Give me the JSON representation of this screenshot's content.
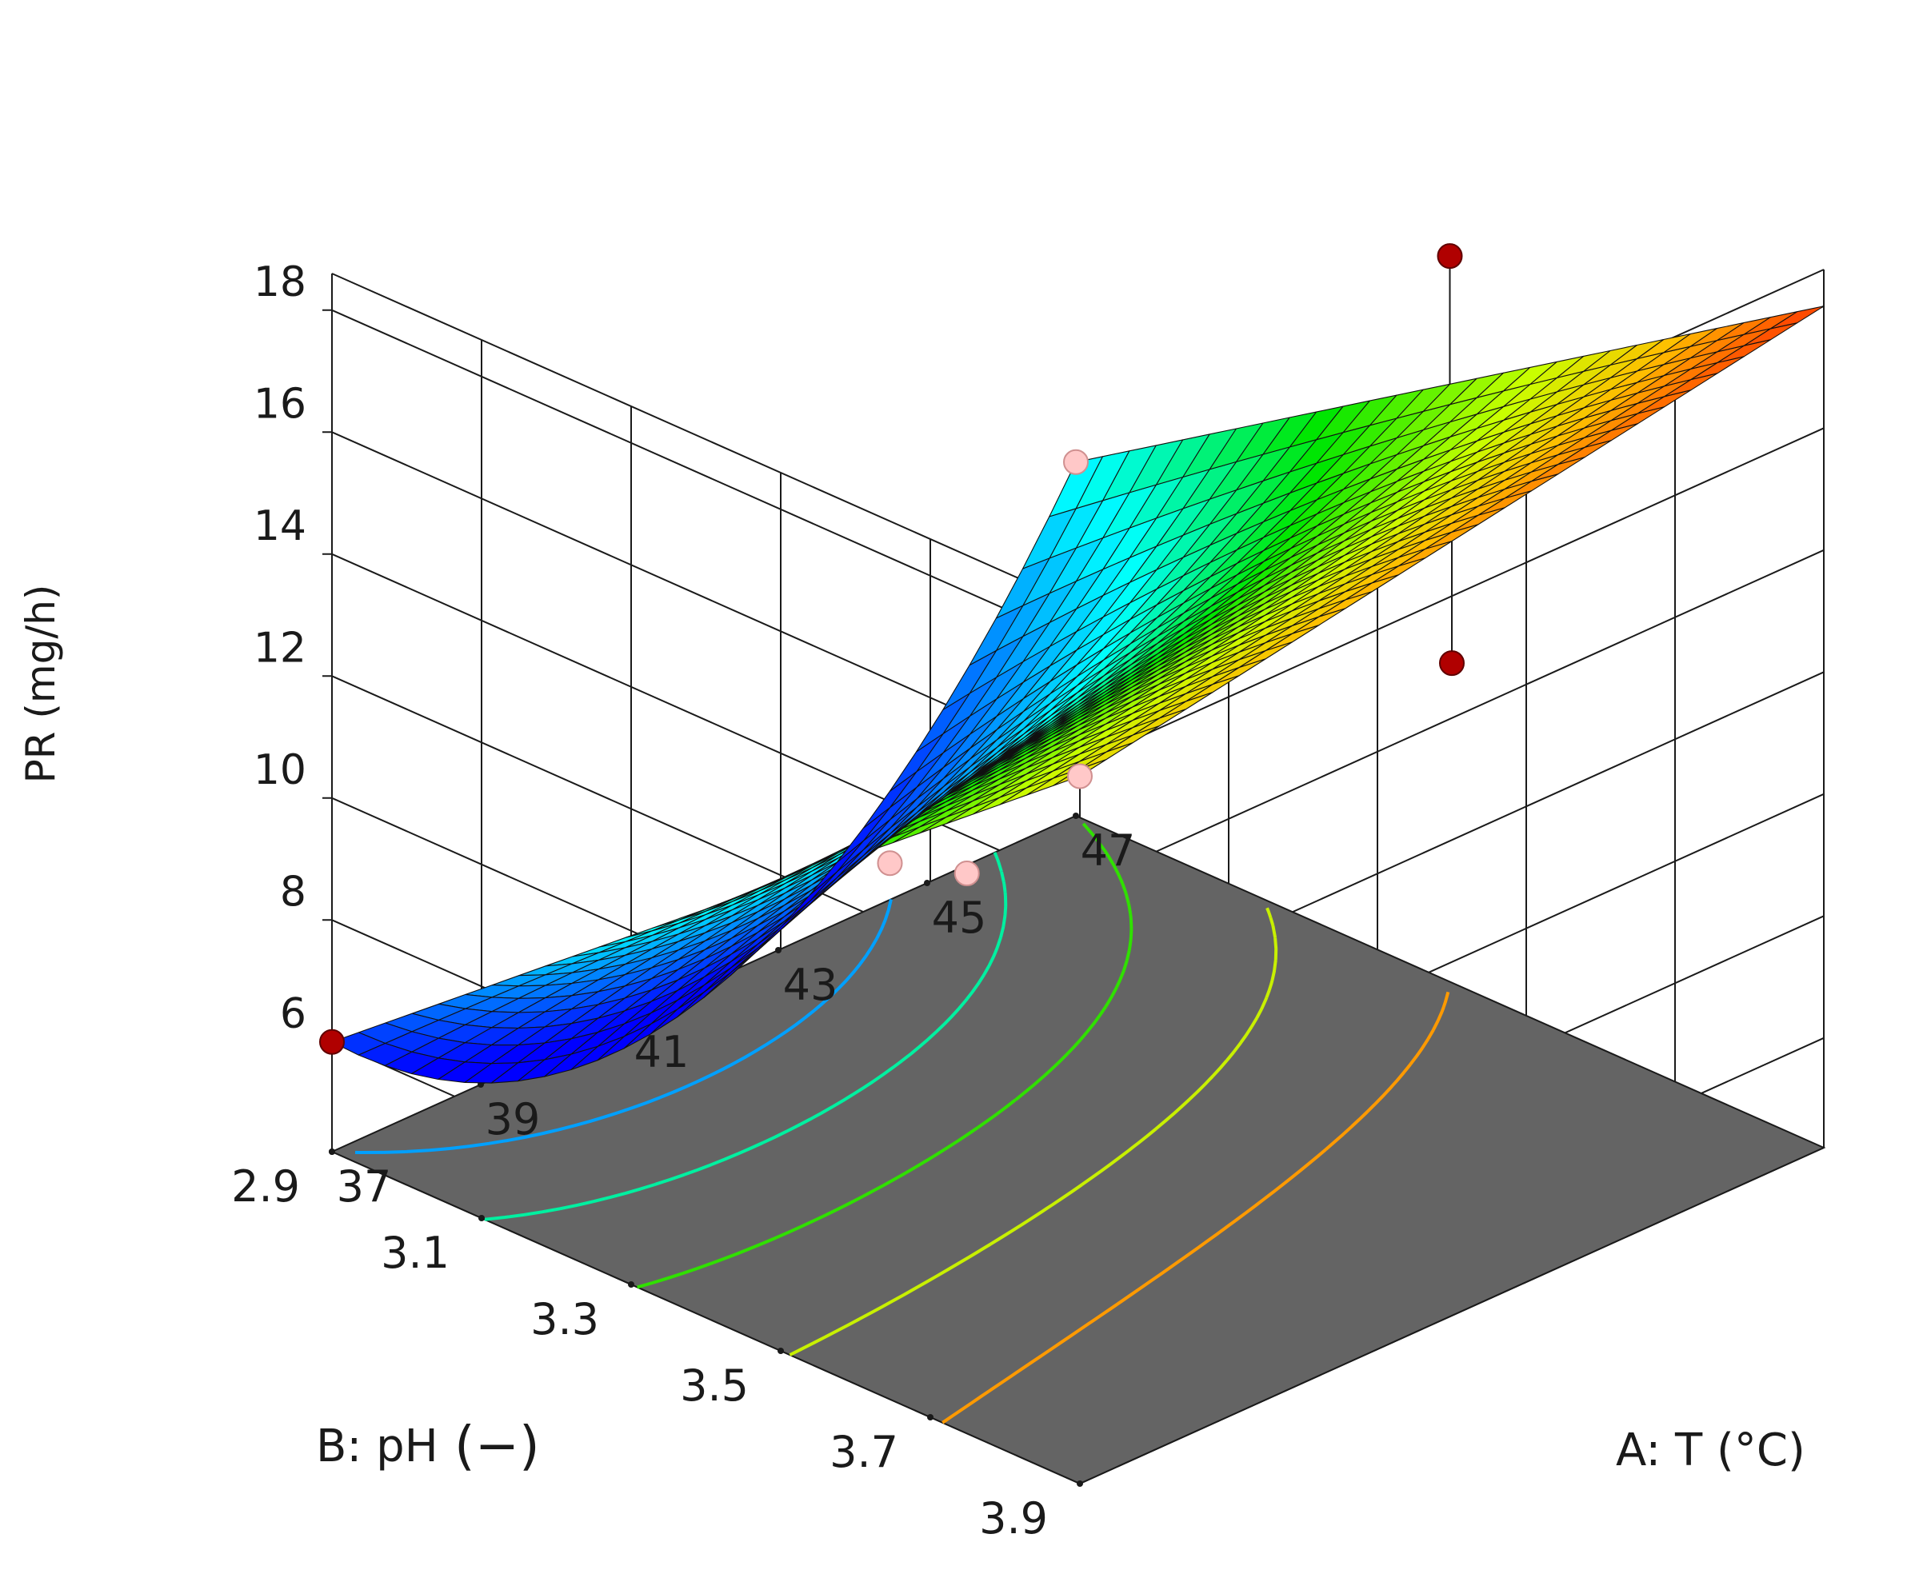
{
  "chart_data": {
    "type": "surface",
    "zlabel": "PR (mg/h)",
    "xlabel": "A: T (°C)",
    "ylabel_text": "B: pH",
    "ylabel_unit": "(−)",
    "x_ticks": [
      "37",
      "39",
      "41",
      "43",
      "45",
      "47"
    ],
    "y_ticks": [
      "2.9",
      "3.1",
      "3.3",
      "3.5",
      "3.7",
      "3.9"
    ],
    "z_ticks": [
      "6",
      "8",
      "10",
      "12",
      "14",
      "16",
      "18"
    ],
    "xlim": [
      37,
      47
    ],
    "ylim": [
      2.9,
      3.9
    ],
    "zlim": [
      4.2,
      18.6
    ],
    "model": {
      "description": "quadratic response surface PR = f(T, pH)",
      "corners": [
        {
          "T": 37,
          "pH": 3.9,
          "PR": 15.8
        },
        {
          "T": 47,
          "pH": 3.9,
          "PR": 18.0
        },
        {
          "T": 37,
          "pH": 2.9,
          "PR": 6.0
        },
        {
          "T": 47,
          "pH": 2.9,
          "PR": 10.0
        }
      ],
      "minimum_region": {
        "T": 41.5,
        "pH": 2.9,
        "PR": 5.0
      }
    },
    "design_points": [
      {
        "T": 37,
        "pH": 3.9,
        "PR": 15.8,
        "position": "below surface"
      },
      {
        "T": 47,
        "pH": 2.9,
        "PR": 10.0,
        "position": "below surface"
      },
      {
        "T": 42,
        "pH": 3.9,
        "PR": 14.9,
        "position": "above surface"
      },
      {
        "T": 47,
        "pH": 3.4,
        "PR": 16.1,
        "position": "above surface"
      },
      {
        "T": 37,
        "pH": 2.9,
        "PR": 6.0,
        "position": "above surface"
      },
      {
        "T": 39,
        "pH": 3.55,
        "PR": 11.2,
        "position": "below surface"
      },
      {
        "T": 44.5,
        "pH": 2.9,
        "PR": 4.8,
        "position": "below surface"
      }
    ],
    "contour_levels": [
      6,
      8,
      10,
      12,
      14
    ],
    "colormap": [
      "#0000ff",
      "#00ffff",
      "#00ff00",
      "#ffff00",
      "#ff0000"
    ],
    "floor_color": "#646464",
    "point_color_above": "#b00000",
    "point_color_below": "#ffc8c8"
  }
}
